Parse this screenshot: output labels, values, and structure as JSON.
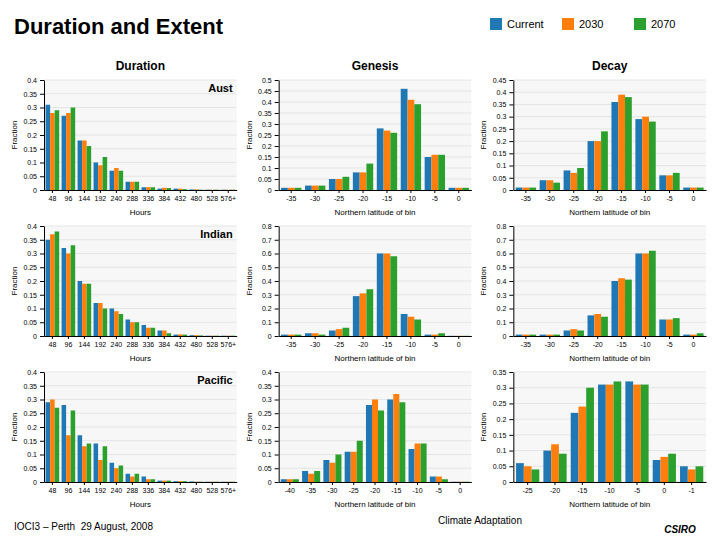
{
  "title": "Duration and Extent",
  "subtitle": "IOCI3 – Perth  29 August, 2008",
  "annotations": [
    "Climate Adaptation",
    "CSIRO"
  ],
  "chart_data": [
    {
      "type": "bar",
      "title": "Duration",
      "annotations": [
        "Aust"
      ],
      "legend": "top-right",
      "categories": [
        "48",
        "96",
        "144",
        "192",
        "240",
        "288",
        "336",
        "384",
        "432",
        "480",
        "528",
        "576+"
      ],
      "xlabel": "Hours",
      "ylabel": "Fraction",
      "ylim": [
        0,
        0.4
      ],
      "yticks": [
        0,
        0.05,
        0.1,
        0.15,
        0.2,
        0.25,
        0.3,
        0.35,
        0.4
      ],
      "grid": true,
      "series": [
        {
          "name": "Current",
          "values": [
            0.31,
            0.27,
            0.18,
            0.1,
            0.07,
            0.03,
            0.01,
            0.005,
            0.005,
            0.002,
            0.001,
            0.001
          ]
        },
        {
          "name": "2030",
          "values": [
            0.28,
            0.28,
            0.18,
            0.09,
            0.08,
            0.03,
            0.01,
            0.008,
            0.005,
            0.002,
            0.001,
            0.001
          ]
        },
        {
          "name": "2070",
          "values": [
            0.29,
            0.3,
            0.16,
            0.12,
            0.07,
            0.03,
            0.01,
            0.007,
            0.003,
            0.001,
            0.001,
            0.001
          ]
        }
      ]
    },
    {
      "type": "bar",
      "title": "Genesis",
      "categories": [
        "-35",
        "-30",
        "-25",
        "-20",
        "-15",
        "-10",
        "-5",
        "0"
      ],
      "xlabel": "Northern latitude of bin",
      "ylabel": "Fraction",
      "ylim": [
        0,
        0.5
      ],
      "yticks": [
        0,
        0.05,
        0.1,
        0.15,
        0.2,
        0.25,
        0.3,
        0.35,
        0.4,
        0.45,
        0.5
      ],
      "grid": true,
      "series": [
        {
          "name": "Current",
          "values": [
            0.01,
            0.02,
            0.05,
            0.08,
            0.28,
            0.46,
            0.15,
            0.01
          ]
        },
        {
          "name": "2030",
          "values": [
            0.01,
            0.02,
            0.05,
            0.08,
            0.27,
            0.41,
            0.16,
            0.01
          ]
        },
        {
          "name": "2070",
          "values": [
            0.01,
            0.02,
            0.06,
            0.12,
            0.26,
            0.39,
            0.16,
            0.01
          ]
        }
      ]
    },
    {
      "type": "bar",
      "title": "Decay",
      "categories": [
        "-35",
        "-30",
        "-25",
        "-20",
        "-15",
        "-10",
        "-5",
        "0"
      ],
      "xlabel": "Northern latitude of bin",
      "ylabel": "Fraction",
      "ylim": [
        0,
        0.45
      ],
      "yticks": [
        0,
        0.05,
        0.1,
        0.15,
        0.2,
        0.25,
        0.3,
        0.35,
        0.4,
        0.45
      ],
      "grid": true,
      "series": [
        {
          "name": "Current",
          "values": [
            0.01,
            0.04,
            0.08,
            0.2,
            0.36,
            0.29,
            0.06,
            0.01
          ]
        },
        {
          "name": "2030",
          "values": [
            0.01,
            0.04,
            0.07,
            0.2,
            0.39,
            0.3,
            0.06,
            0.01
          ]
        },
        {
          "name": "2070",
          "values": [
            0.01,
            0.03,
            0.09,
            0.24,
            0.38,
            0.28,
            0.07,
            0.01
          ]
        }
      ]
    },
    {
      "type": "bar",
      "annotations": [
        "Indian"
      ],
      "categories": [
        "48",
        "96",
        "144",
        "192",
        "240",
        "288",
        "336",
        "384",
        "432",
        "480",
        "528",
        "576+"
      ],
      "xlabel": "Hours",
      "ylabel": "Fraction",
      "ylim": [
        0,
        0.4
      ],
      "yticks": [
        0,
        0.05,
        0.1,
        0.15,
        0.2,
        0.25,
        0.3,
        0.35,
        0.4
      ],
      "grid": true,
      "series": [
        {
          "name": "Current",
          "values": [
            0.35,
            0.32,
            0.2,
            0.12,
            0.1,
            0.06,
            0.04,
            0.02,
            0.005,
            0.003,
            0.001,
            0.001
          ]
        },
        {
          "name": "2030",
          "values": [
            0.37,
            0.3,
            0.19,
            0.12,
            0.09,
            0.05,
            0.03,
            0.02,
            0.006,
            0.003,
            0.001,
            0.001
          ]
        },
        {
          "name": "2070",
          "values": [
            0.38,
            0.33,
            0.19,
            0.1,
            0.08,
            0.05,
            0.03,
            0.01,
            0.005,
            0.002,
            0.001,
            0.001
          ]
        }
      ]
    },
    {
      "type": "bar",
      "categories": [
        "-35",
        "-30",
        "-25",
        "-20",
        "-15",
        "-10",
        "-5",
        "0"
      ],
      "xlabel": "Northern latitude of bin",
      "ylabel": "Fraction",
      "ylim": [
        0,
        0.8
      ],
      "yticks": [
        0,
        0.1,
        0.2,
        0.3,
        0.4,
        0.5,
        0.6,
        0.7,
        0.8
      ],
      "grid": true,
      "series": [
        {
          "name": "Current",
          "values": [
            0.01,
            0.02,
            0.04,
            0.29,
            0.6,
            0.16,
            0.01,
            0.001
          ]
        },
        {
          "name": "2030",
          "values": [
            0.01,
            0.02,
            0.05,
            0.31,
            0.6,
            0.14,
            0.01,
            0.001
          ]
        },
        {
          "name": "2070",
          "values": [
            0.01,
            0.01,
            0.06,
            0.34,
            0.58,
            0.12,
            0.02,
            0.001
          ]
        }
      ]
    },
    {
      "type": "bar",
      "categories": [
        "-35",
        "-30",
        "-25",
        "-20",
        "-15",
        "-10",
        "-5",
        "0"
      ],
      "xlabel": "Northern latitude of bin",
      "ylabel": "Fraction",
      "ylim": [
        0,
        0.8
      ],
      "yticks": [
        0,
        0.1,
        0.2,
        0.3,
        0.4,
        0.5,
        0.6,
        0.7,
        0.8
      ],
      "grid": true,
      "series": [
        {
          "name": "Current",
          "values": [
            0.01,
            0.01,
            0.04,
            0.15,
            0.4,
            0.6,
            0.12,
            0.01
          ]
        },
        {
          "name": "2030",
          "values": [
            0.01,
            0.01,
            0.05,
            0.16,
            0.42,
            0.6,
            0.12,
            0.01
          ]
        },
        {
          "name": "2070",
          "values": [
            0.01,
            0.01,
            0.04,
            0.14,
            0.41,
            0.62,
            0.13,
            0.02
          ]
        }
      ]
    },
    {
      "type": "bar",
      "annotations": [
        "Pacific"
      ],
      "categories": [
        "48",
        "96",
        "144",
        "192",
        "240",
        "288",
        "336",
        "384",
        "432",
        "480",
        "528",
        "576+"
      ],
      "xlabel": "Hours",
      "ylabel": "Fraction",
      "ylim": [
        0,
        0.4
      ],
      "yticks": [
        0,
        0.05,
        0.1,
        0.15,
        0.2,
        0.25,
        0.3,
        0.35,
        0.4
      ],
      "grid": true,
      "series": [
        {
          "name": "Current",
          "values": [
            0.29,
            0.28,
            0.17,
            0.14,
            0.07,
            0.03,
            0.02,
            0.005,
            0.003,
            0.002,
            0.001,
            0.001
          ]
        },
        {
          "name": "2030",
          "values": [
            0.3,
            0.17,
            0.13,
            0.08,
            0.05,
            0.02,
            0.01,
            0.005,
            0.003,
            0.001,
            0.001,
            0.001
          ]
        },
        {
          "name": "2070",
          "values": [
            0.27,
            0.26,
            0.14,
            0.13,
            0.06,
            0.03,
            0.01,
            0.005,
            0.003,
            0.001,
            0.001,
            0.001
          ]
        }
      ]
    },
    {
      "type": "bar",
      "categories": [
        "-40",
        "-35",
        "-30",
        "-25",
        "-20",
        "-15",
        "-10",
        "-5",
        "0"
      ],
      "xlabel": "Northern latitude of bin",
      "ylabel": "Fraction",
      "ylim": [
        0,
        0.4
      ],
      "yticks": [
        0,
        0.05,
        0.1,
        0.15,
        0.2,
        0.25,
        0.3,
        0.35,
        0.4
      ],
      "grid": true,
      "series": [
        {
          "name": "Current",
          "values": [
            0.01,
            0.04,
            0.08,
            0.11,
            0.28,
            0.3,
            0.12,
            0.02,
            0.001
          ]
        },
        {
          "name": "2030",
          "values": [
            0.01,
            0.03,
            0.07,
            0.11,
            0.3,
            0.32,
            0.14,
            0.02,
            0.001
          ]
        },
        {
          "name": "2070",
          "values": [
            0.01,
            0.04,
            0.1,
            0.15,
            0.26,
            0.29,
            0.14,
            0.01,
            0.001
          ]
        }
      ]
    },
    {
      "type": "bar",
      "categories": [
        "-25",
        "-20",
        "-15",
        "-10",
        "-5",
        "0",
        "-1"
      ],
      "xlabel": "Northern latitude of bin",
      "ylabel": "Fraction",
      "ylim": [
        0,
        0.35
      ],
      "yticks": [
        0,
        0.05,
        0.1,
        0.15,
        0.2,
        0.25,
        0.3,
        0.35
      ],
      "grid": true,
      "series": [
        {
          "name": "Current",
          "values": [
            0.06,
            0.1,
            0.22,
            0.31,
            0.32,
            0.07,
            0.05
          ]
        },
        {
          "name": "2030",
          "values": [
            0.05,
            0.12,
            0.24,
            0.31,
            0.31,
            0.08,
            0.04
          ]
        },
        {
          "name": "2070",
          "values": [
            0.04,
            0.09,
            0.3,
            0.32,
            0.31,
            0.09,
            0.05
          ]
        }
      ]
    }
  ]
}
